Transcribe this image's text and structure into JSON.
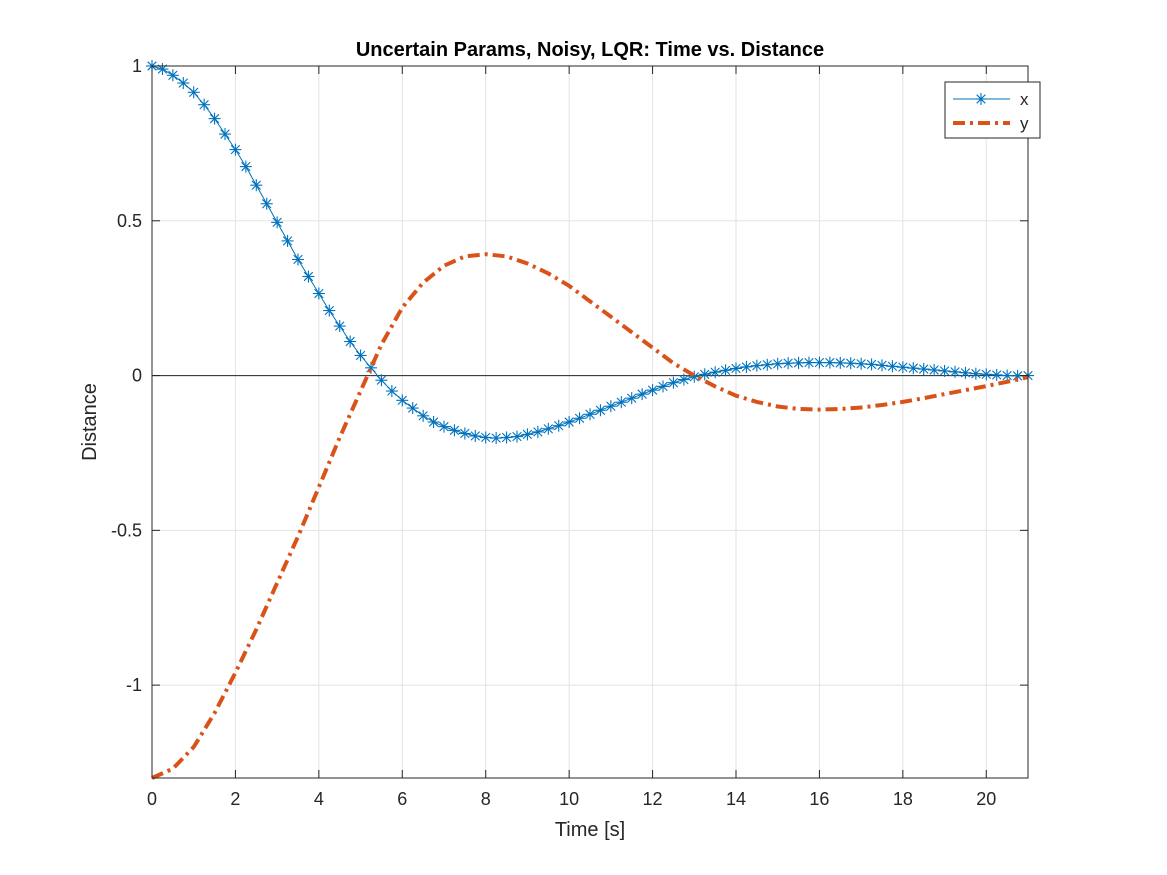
{
  "chart_data": {
    "type": "line",
    "title": "Uncertain Params, Noisy, LQR: Time vs. Distance",
    "xlabel": "Time [s]",
    "ylabel": "Distance",
    "xlim": [
      0,
      21
    ],
    "ylim": [
      -1.3,
      1
    ],
    "xticks": [
      0,
      2,
      4,
      6,
      8,
      10,
      12,
      14,
      16,
      18,
      20
    ],
    "xtick_labels": [
      "0",
      "2",
      "4",
      "6",
      "8",
      "10",
      "12",
      "14",
      "16",
      "18",
      "20"
    ],
    "yticks": [
      -1,
      -0.5,
      0,
      0.5,
      1
    ],
    "ytick_labels": [
      "-1",
      "-0.5",
      "0",
      "0.5",
      "1"
    ],
    "grid": true,
    "zero_line": true,
    "legend_position": "top-right",
    "series": [
      {
        "name": "x",
        "color": "#0072bd",
        "line_style": "solid",
        "marker": "asterisk",
        "x": [
          0,
          0.25,
          0.5,
          0.75,
          1,
          1.25,
          1.5,
          1.75,
          2,
          2.25,
          2.5,
          2.75,
          3,
          3.25,
          3.5,
          3.75,
          4,
          4.25,
          4.5,
          4.75,
          5,
          5.25,
          5.5,
          5.75,
          6,
          6.25,
          6.5,
          6.75,
          7,
          7.25,
          7.5,
          7.75,
          8,
          8.25,
          8.5,
          8.75,
          9,
          9.25,
          9.5,
          9.75,
          10,
          10.25,
          10.5,
          10.75,
          11,
          11.25,
          11.5,
          11.75,
          12,
          12.25,
          12.5,
          12.75,
          13,
          13.25,
          13.5,
          13.75,
          14,
          14.25,
          14.5,
          14.75,
          15,
          15.25,
          15.5,
          15.75,
          16,
          16.25,
          16.5,
          16.75,
          17,
          17.25,
          17.5,
          17.75,
          18,
          18.25,
          18.5,
          18.75,
          19,
          19.25,
          19.5,
          19.75,
          20,
          20.25,
          20.5,
          20.75,
          21
        ],
        "y": [
          1.0,
          0.99,
          0.97,
          0.945,
          0.915,
          0.875,
          0.83,
          0.78,
          0.73,
          0.675,
          0.615,
          0.555,
          0.495,
          0.435,
          0.375,
          0.32,
          0.265,
          0.21,
          0.16,
          0.11,
          0.065,
          0.025,
          -0.015,
          -0.05,
          -0.08,
          -0.105,
          -0.13,
          -0.15,
          -0.165,
          -0.177,
          -0.187,
          -0.195,
          -0.2,
          -0.202,
          -0.2,
          -0.197,
          -0.19,
          -0.182,
          -0.172,
          -0.162,
          -0.15,
          -0.138,
          -0.125,
          -0.112,
          -0.099,
          -0.086,
          -0.073,
          -0.06,
          -0.047,
          -0.035,
          -0.023,
          -0.013,
          -0.004,
          0.004,
          0.011,
          0.017,
          0.023,
          0.028,
          0.032,
          0.035,
          0.038,
          0.04,
          0.041,
          0.042,
          0.042,
          0.042,
          0.041,
          0.04,
          0.038,
          0.036,
          0.033,
          0.03,
          0.027,
          0.024,
          0.021,
          0.018,
          0.015,
          0.012,
          0.009,
          0.006,
          0.004,
          0.002,
          0.0,
          -0.001,
          0.0
        ]
      },
      {
        "name": "y",
        "color": "#d95319",
        "line_style": "dash-dot",
        "marker": "none",
        "x": [
          0,
          0.5,
          1,
          1.5,
          2,
          2.5,
          3,
          3.5,
          4,
          4.5,
          5,
          5.5,
          6,
          6.5,
          7,
          7.5,
          8,
          8.5,
          9,
          9.5,
          10,
          10.5,
          11,
          11.5,
          12,
          12.5,
          13,
          13.5,
          14,
          14.5,
          15,
          15.5,
          16,
          16.5,
          17,
          17.5,
          18,
          18.5,
          19,
          19.5,
          20,
          20.5,
          21
        ],
        "y": [
          -1.3,
          -1.27,
          -1.2,
          -1.09,
          -0.96,
          -0.82,
          -0.67,
          -0.52,
          -0.36,
          -0.2,
          -0.05,
          0.1,
          0.22,
          0.3,
          0.355,
          0.385,
          0.392,
          0.385,
          0.362,
          0.33,
          0.29,
          0.24,
          0.19,
          0.14,
          0.09,
          0.04,
          0.0,
          -0.035,
          -0.065,
          -0.085,
          -0.1,
          -0.108,
          -0.11,
          -0.108,
          -0.103,
          -0.095,
          -0.085,
          -0.073,
          -0.06,
          -0.047,
          -0.034,
          -0.02,
          -0.005
        ]
      }
    ]
  }
}
